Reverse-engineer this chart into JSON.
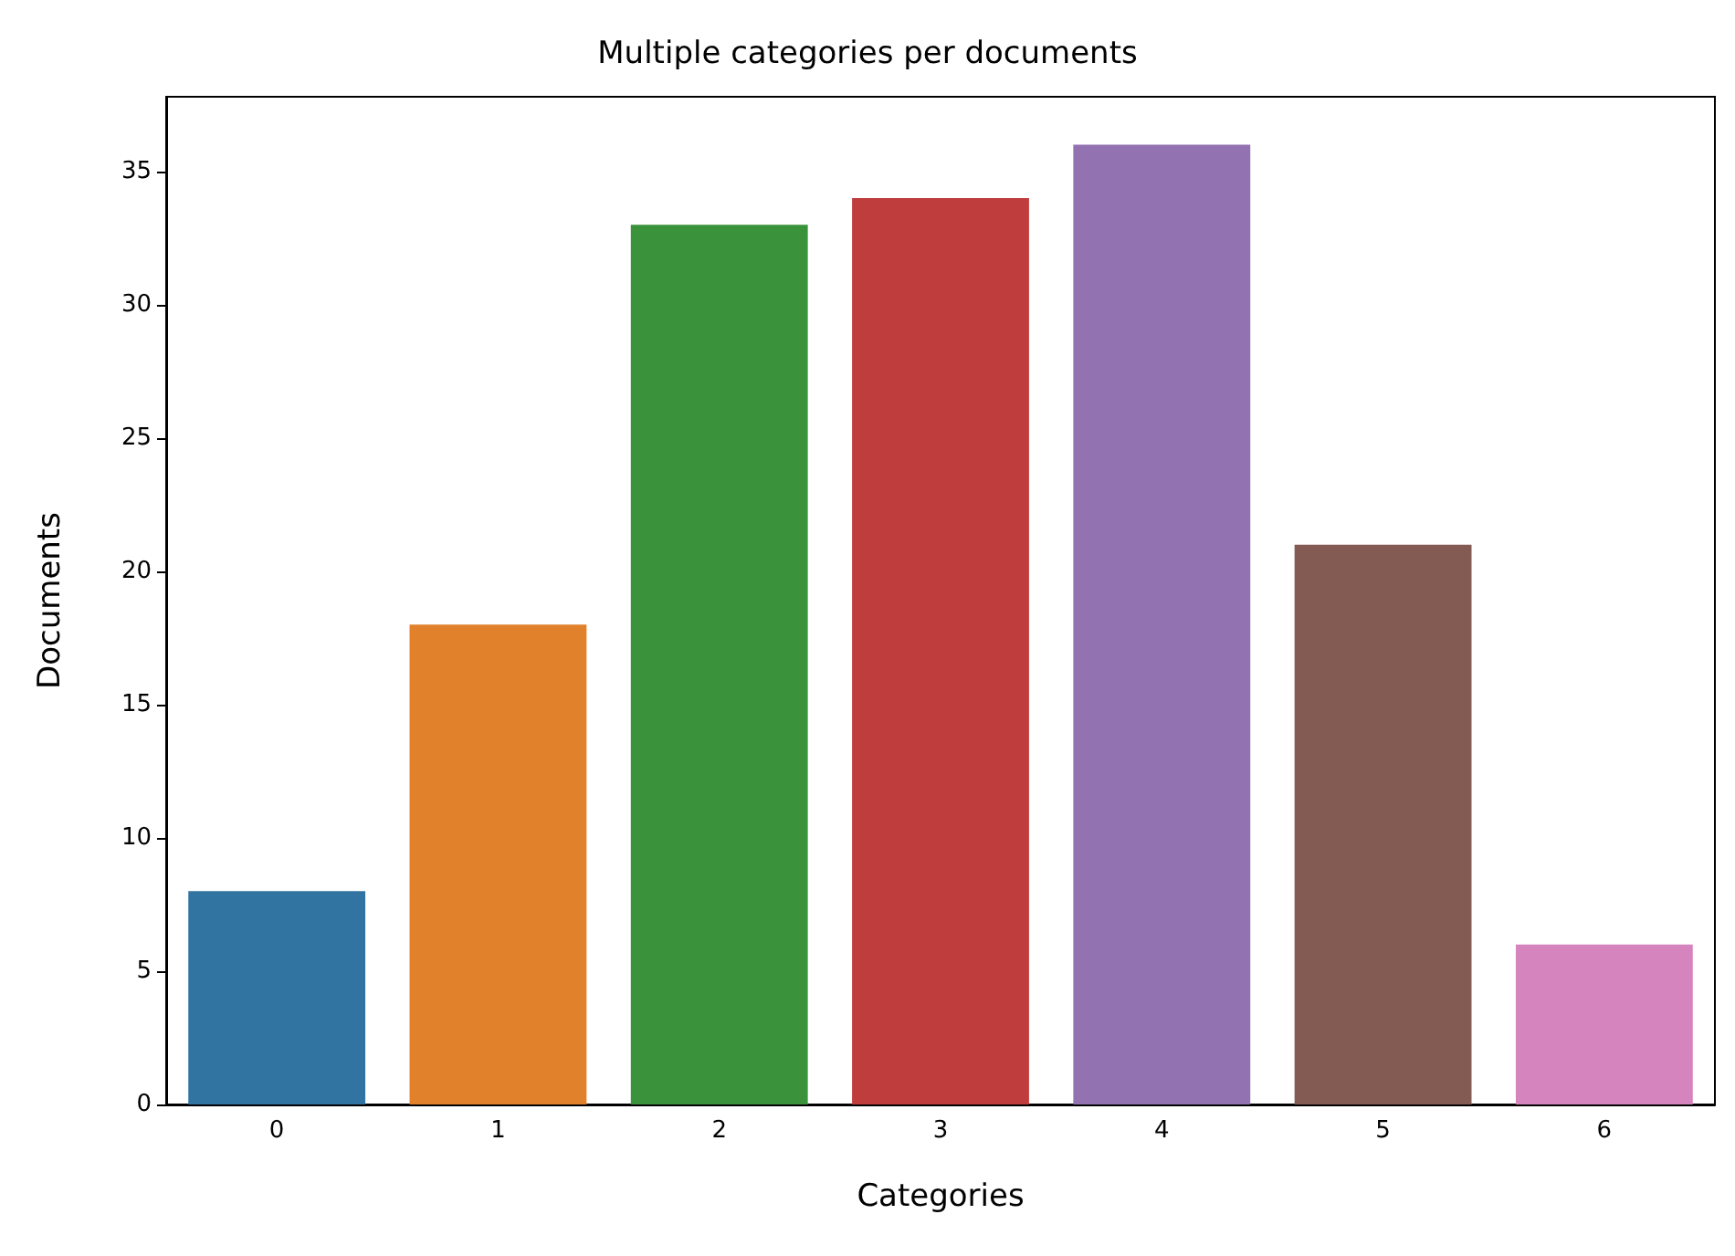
{
  "chart_data": {
    "type": "bar",
    "title": "Multiple categories per documents",
    "xlabel": "Categories",
    "ylabel": "Documents",
    "categories": [
      "0",
      "1",
      "2",
      "3",
      "4",
      "5",
      "6"
    ],
    "values": [
      8,
      18,
      33,
      34,
      36,
      21,
      6
    ],
    "colors": [
      "#3274a1",
      "#e1812c",
      "#3a923a",
      "#c03d3e",
      "#9372b2",
      "#845b53",
      "#d684bd"
    ],
    "ylim": [
      0,
      37.8
    ],
    "yticks": [
      0,
      5,
      10,
      15,
      20,
      25,
      30,
      35
    ],
    "grid": false
  }
}
